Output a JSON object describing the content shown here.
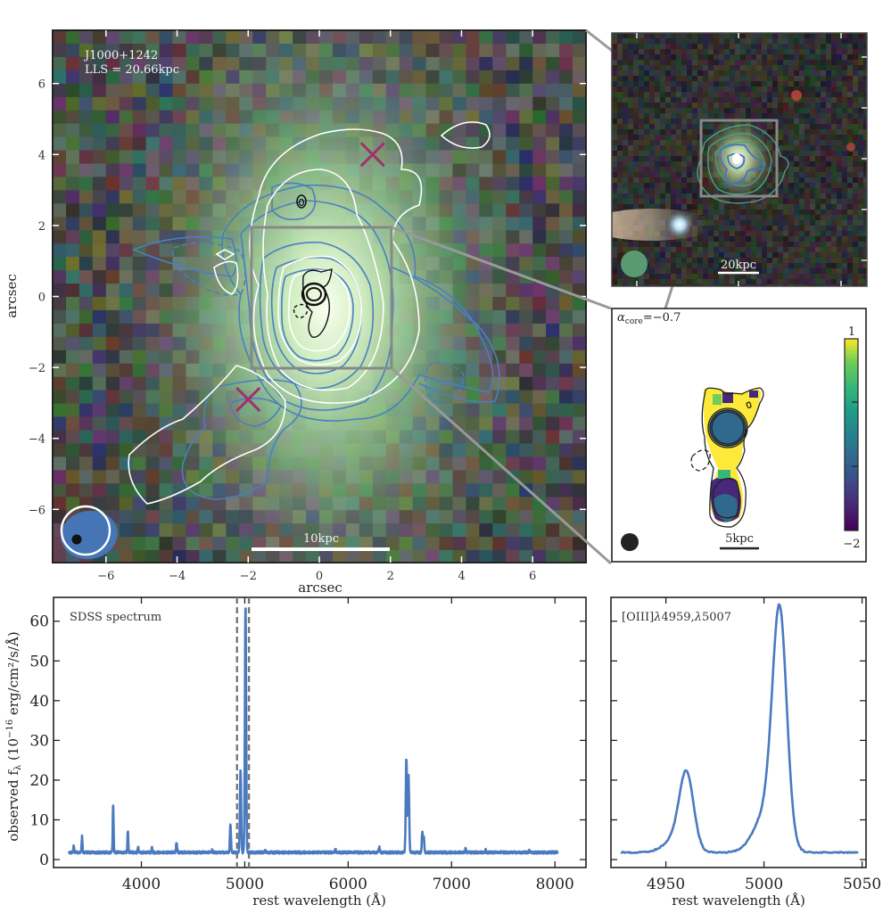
{
  "figure": {
    "panel_a": {
      "target": "J1000+1242",
      "lls": "LLS = 20.66kpc",
      "scalebar": "10kpc",
      "xlabel": "arcsec",
      "ylabel": "arcsec",
      "x_ticks": [
        "−6",
        "−4",
        "−2",
        "0",
        "2",
        "4",
        "6"
      ],
      "y_ticks": [
        "6",
        "4",
        "2",
        "0",
        "−2",
        "−4",
        "−6"
      ],
      "x_tick_values": [
        -6,
        -4,
        -2,
        0,
        2,
        4,
        6
      ],
      "y_tick_values": [
        6,
        4,
        2,
        0,
        -2,
        -4,
        -6
      ],
      "xlim": [
        -7.5,
        7.5
      ],
      "ylim": [
        -7.5,
        7.5
      ],
      "markers": [
        {
          "type": "x",
          "x": 1.5,
          "y": 4.0
        },
        {
          "type": "x",
          "x": -2.0,
          "y": -2.9
        }
      ],
      "colors": {
        "radio_contour": "#4a7fc1",
        "white_contour": "#ffffff",
        "marker": "#a0306f",
        "box": "#888888"
      }
    },
    "panel_b": {
      "scalebar": "20kpc",
      "colors": {
        "contour_green": "#4fa07a",
        "contour_blue": "#3f74c4",
        "beam": "#5a9a72"
      }
    },
    "panel_c": {
      "alpha_label": "α",
      "alpha_sub": "core",
      "alpha_value": "=−0.7",
      "scalebar": "5kpc",
      "colorbar_max": "1",
      "colorbar_min": "−2",
      "colorbar_range": [
        -2,
        1
      ]
    }
  },
  "chart_data": [
    {
      "type": "line",
      "title": "SDSS spectrum",
      "xlabel": "rest wavelength (Å)",
      "ylabel": "observed f",
      "ylabel_sub": "λ",
      "ylabel_rest": " (10",
      "ylabel_exp": "−16",
      "ylabel_units": " erg/cm²/s/Å)",
      "xlim": [
        3150,
        8300
      ],
      "ylim": [
        -2,
        66
      ],
      "x_ticks": [
        4000,
        5000,
        6000,
        7000,
        8000
      ],
      "x_tick_labels": [
        "4000",
        "5000",
        "6000",
        "7000",
        "8000"
      ],
      "y_ticks": [
        0,
        10,
        20,
        30,
        40,
        50,
        60
      ],
      "y_tick_labels": [
        "0",
        "10",
        "20",
        "30",
        "40",
        "50",
        "60"
      ],
      "vlines": [
        4925,
        5040
      ],
      "continuum": 1.8,
      "lines": [
        {
          "x": 3346,
          "peak": 3.5,
          "w": 4
        },
        {
          "x": 3426,
          "peak": 5.8,
          "w": 4
        },
        {
          "x": 3727,
          "peak": 13.7,
          "w": 4
        },
        {
          "x": 3869,
          "peak": 7.3,
          "w": 4
        },
        {
          "x": 3968,
          "peak": 3.4,
          "w": 4
        },
        {
          "x": 4102,
          "peak": 2.9,
          "w": 4
        },
        {
          "x": 4340,
          "peak": 4.1,
          "w": 5
        },
        {
          "x": 4686,
          "peak": 2.4,
          "w": 4
        },
        {
          "x": 4861,
          "peak": 9.0,
          "w": 5
        },
        {
          "x": 4959,
          "peak": 22.8,
          "w": 6
        },
        {
          "x": 5007,
          "peak": 64.0,
          "w": 6
        },
        {
          "x": 5200,
          "peak": 2.3,
          "w": 4
        },
        {
          "x": 5876,
          "peak": 2.8,
          "w": 4
        },
        {
          "x": 6300,
          "peak": 3.2,
          "w": 5
        },
        {
          "x": 6563,
          "peak": 25.3,
          "w": 6
        },
        {
          "x": 6584,
          "peak": 21.0,
          "w": 6
        },
        {
          "x": 6717,
          "peak": 6.8,
          "w": 5
        },
        {
          "x": 6731,
          "peak": 5.6,
          "w": 5
        },
        {
          "x": 7136,
          "peak": 2.8,
          "w": 4
        },
        {
          "x": 7330,
          "peak": 2.4,
          "w": 4
        },
        {
          "x": 7750,
          "peak": 2.4,
          "w": 4
        }
      ],
      "x_range_data": [
        3300,
        8030
      ],
      "color": "#4a7abf"
    },
    {
      "type": "line",
      "title": "[OIII]λ4959,λ5007",
      "title_parts": [
        "[OIII]",
        "λ",
        "4959,",
        "λ",
        "5007"
      ],
      "xlabel": "rest wavelength (Å)",
      "xlim": [
        4922,
        5052
      ],
      "ylim": [
        -2,
        66
      ],
      "x_ticks": [
        4950,
        5000,
        5050
      ],
      "x_tick_labels": [
        "4950",
        "5000",
        "5050"
      ],
      "y_ticks": [
        0,
        10,
        20,
        30,
        40,
        50,
        60
      ],
      "x_range_data": [
        4927,
        5048
      ],
      "continuum": 1.8,
      "components": [
        {
          "x": 4960.5,
          "peak": 18.5,
          "sigma": 3.6
        },
        {
          "x": 4955,
          "peak": 3.2,
          "sigma": 6
        },
        {
          "x": 5008,
          "peak": 55.5,
          "sigma": 3.6
        },
        {
          "x": 5002,
          "peak": 10.5,
          "sigma": 6.5
        }
      ],
      "color": "#4a7abf"
    }
  ]
}
